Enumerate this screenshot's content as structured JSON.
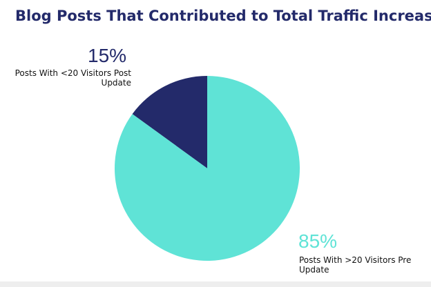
{
  "chart_data": {
    "type": "pie",
    "title": "Blog Posts That Contributed to Total Traffic Increase",
    "slices": [
      {
        "label": "Posts With <20 Visitors Post Update",
        "value": 15,
        "value_label": "15%",
        "color": "#232a6a"
      },
      {
        "label": "Posts With >20 Visitors Pre Update",
        "value": 85,
        "value_label": "85%",
        "color": "#5fe3d6"
      }
    ]
  }
}
